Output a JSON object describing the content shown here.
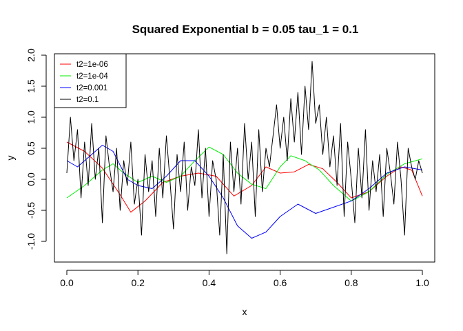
{
  "chart_data": {
    "type": "line",
    "title": "Squared Exponential  b = 0.05  tau_1 = 0.1",
    "xlabel": "x",
    "ylabel": "y",
    "xlim": [
      0.0,
      1.0
    ],
    "ylim": [
      -1.0,
      2.0
    ],
    "x_ticks": [
      "0.0",
      "0.2",
      "0.4",
      "0.6",
      "0.8",
      "1.0"
    ],
    "y_ticks": [
      "-1.0",
      "-0.5",
      "0.0",
      "0.5",
      "1.0",
      "1.5",
      "2.0"
    ],
    "grid": false,
    "legend_position": "top-left",
    "series": [
      {
        "name": "t2=1e-06",
        "color": "#ff0000",
        "x": [
          0.0,
          0.05,
          0.1,
          0.15,
          0.18,
          0.22,
          0.27,
          0.32,
          0.37,
          0.42,
          0.47,
          0.52,
          0.56,
          0.6,
          0.64,
          0.68,
          0.72,
          0.76,
          0.8,
          0.85,
          0.9,
          0.94,
          0.97,
          1.0
        ],
        "y": [
          0.6,
          0.45,
          0.18,
          -0.25,
          -0.53,
          -0.35,
          -0.05,
          0.05,
          0.1,
          0.05,
          -0.27,
          -0.1,
          0.2,
          0.1,
          0.12,
          0.24,
          0.17,
          -0.05,
          -0.3,
          -0.2,
          0.05,
          0.2,
          0.15,
          -0.27
        ]
      },
      {
        "name": "t2=1e-04",
        "color": "#00ee00",
        "x": [
          0.0,
          0.05,
          0.1,
          0.13,
          0.16,
          0.2,
          0.24,
          0.28,
          0.32,
          0.36,
          0.4,
          0.44,
          0.48,
          0.52,
          0.56,
          0.6,
          0.63,
          0.67,
          0.71,
          0.75,
          0.8,
          0.85,
          0.9,
          0.95,
          1.0
        ],
        "y": [
          -0.3,
          -0.1,
          0.15,
          0.25,
          0.1,
          -0.05,
          0.05,
          -0.05,
          0.05,
          0.3,
          0.52,
          0.4,
          0.1,
          -0.08,
          -0.15,
          0.2,
          0.38,
          0.3,
          0.15,
          -0.1,
          -0.35,
          -0.2,
          0.08,
          0.25,
          0.33
        ]
      },
      {
        "name": "t2=0.001",
        "color": "#0000ff",
        "x": [
          0.0,
          0.03,
          0.07,
          0.1,
          0.13,
          0.17,
          0.2,
          0.24,
          0.28,
          0.32,
          0.36,
          0.4,
          0.44,
          0.48,
          0.52,
          0.56,
          0.6,
          0.65,
          0.7,
          0.75,
          0.8,
          0.85,
          0.9,
          0.95,
          1.0
        ],
        "y": [
          0.3,
          0.2,
          0.4,
          0.55,
          0.45,
          0.0,
          -0.1,
          -0.15,
          0.05,
          0.3,
          0.3,
          0.05,
          -0.3,
          -0.75,
          -0.95,
          -0.85,
          -0.6,
          -0.4,
          -0.55,
          -0.45,
          -0.35,
          -0.15,
          0.1,
          0.2,
          0.15
        ]
      },
      {
        "name": "t2=0.1",
        "color": "#000000",
        "x": [
          0.0,
          0.01,
          0.02,
          0.03,
          0.04,
          0.05,
          0.06,
          0.07,
          0.08,
          0.09,
          0.1,
          0.11,
          0.12,
          0.13,
          0.14,
          0.15,
          0.16,
          0.17,
          0.18,
          0.19,
          0.2,
          0.21,
          0.22,
          0.23,
          0.24,
          0.25,
          0.26,
          0.27,
          0.28,
          0.29,
          0.3,
          0.31,
          0.32,
          0.33,
          0.34,
          0.35,
          0.36,
          0.37,
          0.38,
          0.39,
          0.4,
          0.41,
          0.42,
          0.43,
          0.44,
          0.45,
          0.46,
          0.47,
          0.48,
          0.49,
          0.5,
          0.51,
          0.52,
          0.53,
          0.54,
          0.55,
          0.56,
          0.57,
          0.58,
          0.59,
          0.6,
          0.61,
          0.62,
          0.63,
          0.64,
          0.65,
          0.66,
          0.67,
          0.68,
          0.69,
          0.7,
          0.71,
          0.72,
          0.73,
          0.74,
          0.75,
          0.76,
          0.77,
          0.78,
          0.79,
          0.8,
          0.81,
          0.82,
          0.83,
          0.84,
          0.85,
          0.86,
          0.87,
          0.88,
          0.89,
          0.9,
          0.91,
          0.92,
          0.93,
          0.94,
          0.95,
          0.96,
          0.97,
          0.98,
          0.99,
          1.0
        ],
        "y": [
          0.1,
          1.0,
          0.3,
          0.8,
          -0.3,
          0.6,
          -0.1,
          0.9,
          0.0,
          0.5,
          -0.7,
          0.7,
          0.2,
          -0.2,
          0.5,
          -0.5,
          0.3,
          -0.1,
          0.6,
          -0.4,
          0.0,
          -0.9,
          0.4,
          -0.2,
          0.3,
          -0.6,
          0.5,
          -0.3,
          0.7,
          0.0,
          -0.8,
          0.4,
          -0.2,
          0.6,
          -0.5,
          0.2,
          -0.1,
          0.8,
          -0.3,
          0.5,
          -0.6,
          0.3,
          0.0,
          -0.9,
          0.4,
          -1.2,
          0.6,
          -0.2,
          0.5,
          -0.4,
          0.9,
          0.0,
          0.6,
          -0.6,
          0.8,
          -0.2,
          0.5,
          0.2,
          0.7,
          1.2,
          0.5,
          1.0,
          0.3,
          1.3,
          0.6,
          1.4,
          0.4,
          1.5,
          0.8,
          1.9,
          0.9,
          1.2,
          0.4,
          1.0,
          0.2,
          0.7,
          -0.1,
          0.9,
          -0.6,
          0.6,
          0.0,
          -0.7,
          0.5,
          -0.3,
          0.8,
          -0.5,
          0.3,
          -0.2,
          0.4,
          -0.6,
          0.5,
          0.1,
          -0.4,
          0.6,
          0.0,
          -0.9,
          0.5,
          0.2,
          0.0,
          0.3,
          0.1
        ]
      }
    ]
  }
}
